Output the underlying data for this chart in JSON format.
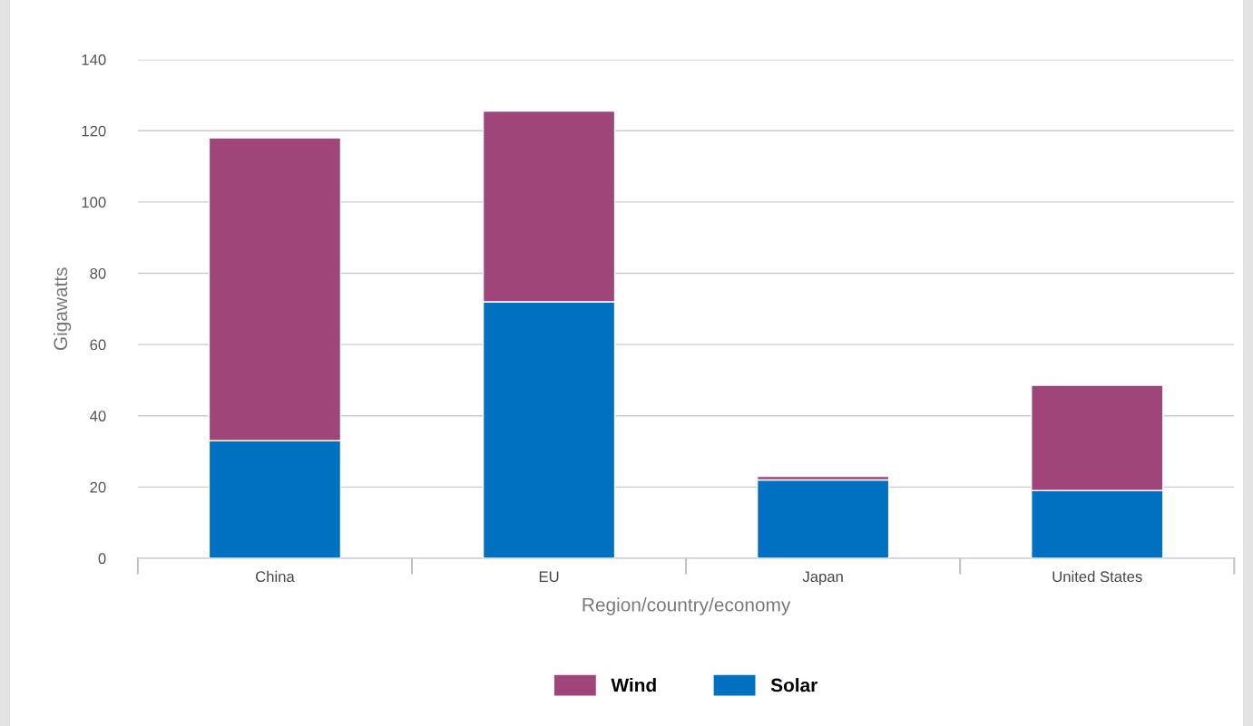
{
  "chart_data": {
    "type": "bar",
    "stacked": true,
    "xlabel": "Region/country/economy",
    "ylabel": "Gigawatts",
    "categories": [
      "China",
      "EU",
      "Japan",
      "United States"
    ],
    "series": [
      {
        "name": "Solar",
        "color": "#0070c0",
        "values": [
          33,
          72,
          22,
          19
        ]
      },
      {
        "name": "Wind",
        "color": "#a0457a",
        "values": [
          85,
          53.5,
          1,
          29.6
        ]
      }
    ],
    "ylim": [
      0,
      140
    ],
    "yticks": [
      0,
      20,
      40,
      60,
      80,
      100,
      120,
      140
    ],
    "grid": "y",
    "legend": "bottom"
  }
}
